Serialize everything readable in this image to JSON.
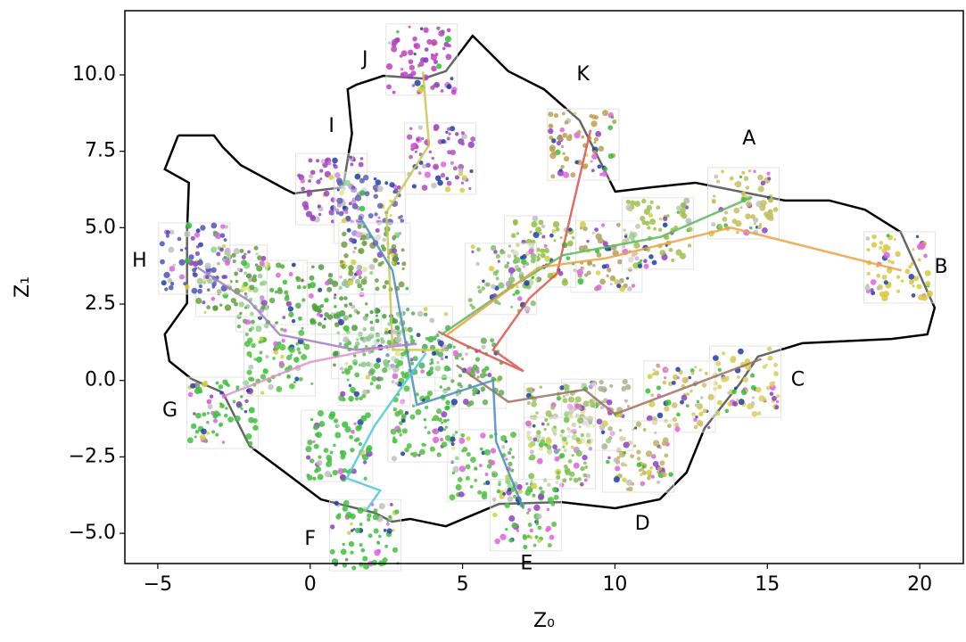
{
  "chart_data": {
    "type": "line",
    "x_label": "Z₀",
    "y_label": "Z₁",
    "xlim": [
      -6.08,
      21.43
    ],
    "ylim": [
      -5.99,
      12.1
    ],
    "xticks": [
      {
        "value": -5,
        "label": "−5"
      },
      0,
      5,
      10,
      15,
      20
    ],
    "yticks": [
      {
        "value": -5,
        "label": "−5.0"
      },
      {
        "value": -2.5,
        "label": "−2.5"
      },
      {
        "value": 0,
        "label": "0.0"
      },
      2.5,
      {
        "value": 5,
        "label": "5.0"
      },
      7.5,
      {
        "value": 10,
        "label": "10.0"
      }
    ],
    "boundary": {
      "color": "#000000",
      "x": [
        -4.33,
        -3.16,
        -2.87,
        -2.28,
        -0.82,
        -0.53,
        -0.09,
        1.08,
        1.37,
        1.23,
        1.52,
        2.4,
        3.72,
        4.45,
        5.33,
        6.5,
        7.67,
        8.84,
        10.01,
        11.18,
        12.64,
        14.1,
        15.57,
        17.03,
        18.2,
        19.37,
        20.49,
        20.25,
        19.08,
        16.15,
        14.69,
        14.1,
        12.94,
        12.35,
        11.47,
        10.01,
        8.25,
        6.2,
        4.45,
        3.28,
        2.69,
        2.11,
        0.35,
        -0.82,
        -1.99,
        -2.87,
        -3.89,
        -4.62,
        -4.77,
        -4.04,
        -4.04,
        -3.98,
        -4.77,
        -4.33
      ],
      "y": [
        8.02,
        8.02,
        7.64,
        7.05,
        6.26,
        6.12,
        6.18,
        6.32,
        8.07,
        9.53,
        9.68,
        9.97,
        9.88,
        10.12,
        11.28,
        10.12,
        9.53,
        8.51,
        6.18,
        6.32,
        6.47,
        6.18,
        5.89,
        5.89,
        5.59,
        4.86,
        2.38,
        1.51,
        1.36,
        1.22,
        0.78,
        -0.1,
        -1.56,
        -3.01,
        -3.89,
        -4.18,
        -3.98,
        -4.04,
        -4.77,
        -4.53,
        -4.62,
        -4.33,
        -3.89,
        -3.01,
        -2.14,
        -0.39,
        0.05,
        0.63,
        1.51,
        2.53,
        4.86,
        6.47,
        6.91,
        8.02
      ]
    },
    "thumbnails": [
      {
        "x": 3.66,
        "y": 10.5,
        "color": "#c040c0"
      },
      {
        "x": 4.27,
        "y": 7.26,
        "color": "#b050c0"
      },
      {
        "x": 8.96,
        "y": 7.72,
        "color": "#c0a050"
      },
      {
        "x": 14.22,
        "y": 5.8,
        "color": "#c0c060"
      },
      {
        "x": 19.34,
        "y": 3.7,
        "color": "#d8c840"
      },
      {
        "x": 14.28,
        "y": -0.04,
        "color": "#d8d060"
      },
      {
        "x": 12.12,
        "y": -0.53,
        "color": "#d0c060"
      },
      {
        "x": 10.77,
        "y": -2.49,
        "color": "#c0b060"
      },
      {
        "x": 9.42,
        "y": -1.12,
        "color": "#b0b090"
      },
      {
        "x": 8.19,
        "y": -1.26,
        "color": "#a0c060"
      },
      {
        "x": 8.19,
        "y": -2.37,
        "color": "#80c050"
      },
      {
        "x": 9.72,
        "y": 4.05,
        "color": "#b0a060"
      },
      {
        "x": 11.41,
        "y": 4.81,
        "color": "#a0c050"
      },
      {
        "x": 7.55,
        "y": 4.22,
        "color": "#90c040"
      },
      {
        "x": 6.26,
        "y": 3.32,
        "color": "#80c060"
      },
      {
        "x": 5.27,
        "y": 0.25,
        "color": "#60b050"
      },
      {
        "x": 5.68,
        "y": -2.78,
        "color": "#50c040"
      },
      {
        "x": 7.08,
        "y": -4.41,
        "color": "#50c040"
      },
      {
        "x": 3.72,
        "y": -1.5,
        "color": "#50c040"
      },
      {
        "x": 3.51,
        "y": 1.27,
        "color": "#50b060"
      },
      {
        "x": 1.87,
        "y": 1.22,
        "color": "#40a040"
      },
      {
        "x": 0.94,
        "y": 2.68,
        "color": "#50a040"
      },
      {
        "x": -1.26,
        "y": 2.76,
        "color": "#50b040"
      },
      {
        "x": -2.58,
        "y": 3.26,
        "color": "#60a040"
      },
      {
        "x": -3.8,
        "y": 3.99,
        "color": "#5050c0"
      },
      {
        "x": -2.87,
        "y": -1.06,
        "color": "#40c040"
      },
      {
        "x": -1.0,
        "y": 0.66,
        "color": "#50c040"
      },
      {
        "x": 2.11,
        "y": 0.34,
        "color": "#50c040"
      },
      {
        "x": 0.88,
        "y": -2.14,
        "color": "#40c040"
      },
      {
        "x": 1.81,
        "y": -5.06,
        "color": "#40c040"
      },
      {
        "x": 0.7,
        "y": 6.26,
        "color": "#a040c0"
      },
      {
        "x": 1.96,
        "y": 5.65,
        "color": "#6060b0"
      },
      {
        "x": 2.11,
        "y": 3.99,
        "color": "#70a040"
      }
    ],
    "series": [
      {
        "color": "#c8c850",
        "x": [
          3.7,
          3.9,
          2.5,
          2.6,
          2.7,
          4.5
        ],
        "y": [
          10.1,
          7.7,
          5.5,
          3.5,
          1.0,
          1.0
        ]
      },
      {
        "color": "#d9534f",
        "x": [
          9.2,
          8.1,
          7.2,
          6.0,
          7.0,
          5.0,
          4.2
        ],
        "y": [
          8.2,
          3.5,
          2.7,
          1.0,
          0.3,
          1.2,
          1.6
        ]
      },
      {
        "color": "#5cb85c",
        "x": [
          14.5,
          11.5,
          8.3,
          6.5,
          4.3
        ],
        "y": [
          6.0,
          4.7,
          4.1,
          3.0,
          1.5
        ]
      },
      {
        "color": "#f0a040",
        "x": [
          19.4,
          13.8,
          9.7,
          7.5,
          4.5
        ],
        "y": [
          3.6,
          5.0,
          4.0,
          3.7,
          1.5
        ]
      },
      {
        "color": "#a07060",
        "x": [
          14.8,
          10.0,
          9.0,
          6.5,
          4.8
        ],
        "y": [
          0.7,
          -1.1,
          -0.3,
          -0.7,
          0.5
        ]
      },
      {
        "color": "#4a8cc0",
        "x": [
          7.0,
          6.1,
          6.0,
          3.5,
          2.7,
          1.6
        ],
        "y": [
          -4.2,
          -2.0,
          0.0,
          -0.8,
          3.6,
          5.4
        ]
      },
      {
        "color": "#4ec8d8",
        "x": [
          1.8,
          2.3,
          1.2,
          2.1,
          3.8
        ],
        "y": [
          -4.3,
          -3.6,
          -3.2,
          -1.5,
          0.9
        ]
      },
      {
        "color": "#a080c0",
        "x": [
          -3.7,
          -2.0,
          -1.0,
          1.5,
          3.5
        ],
        "y": [
          3.7,
          2.6,
          1.5,
          1.0,
          1.2
        ]
      },
      {
        "color": "#e090d0",
        "x": [
          -2.8,
          0.0,
          3.0
        ],
        "y": [
          -0.5,
          0.6,
          1.2
        ]
      }
    ],
    "annotations": [
      {
        "text": "A",
        "x": 14.4,
        "y": 7.9
      },
      {
        "text": "B",
        "x": 20.7,
        "y": 3.7
      },
      {
        "text": "C",
        "x": 16.0,
        "y": 0.0
      },
      {
        "text": "D",
        "x": 10.9,
        "y": -4.7
      },
      {
        "text": "E",
        "x": 7.1,
        "y": -6.0
      },
      {
        "text": "F",
        "x": 0.0,
        "y": -5.2
      },
      {
        "text": "G",
        "x": -4.6,
        "y": -1.0
      },
      {
        "text": "H",
        "x": -5.6,
        "y": 3.9
      },
      {
        "text": "I",
        "x": 0.7,
        "y": 8.3
      },
      {
        "text": "J",
        "x": 1.8,
        "y": 10.5
      },
      {
        "text": "K",
        "x": 8.95,
        "y": 10.0
      }
    ]
  }
}
